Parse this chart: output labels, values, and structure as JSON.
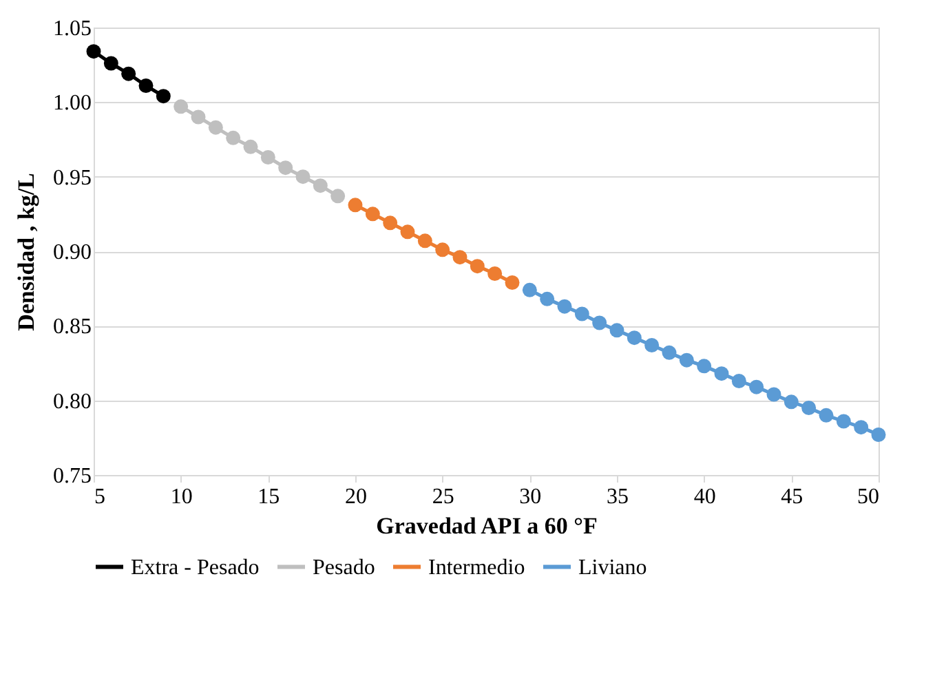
{
  "chart_data": {
    "type": "line",
    "xlabel": "Gravedad API a 60 °F",
    "ylabel": "Densidad , kg/L",
    "xlim": [
      5,
      50
    ],
    "xticks": [
      5,
      10,
      15,
      20,
      25,
      30,
      35,
      40,
      45,
      50
    ],
    "ylim": [
      0.75,
      1.05
    ],
    "yticks": [
      {
        "value": 0.75,
        "label": "0.75"
      },
      {
        "value": 0.8,
        "label": "0.80"
      },
      {
        "value": 0.85,
        "label": "0.85"
      },
      {
        "value": 0.9,
        "label": "0.90"
      },
      {
        "value": 0.95,
        "label": "0.95"
      },
      {
        "value": 1.0,
        "label": "1.00"
      },
      {
        "value": 1.05,
        "label": "1.05"
      }
    ],
    "grid": "y",
    "legend": "bottom",
    "marker": "circle",
    "line_style": "solid",
    "series": [
      {
        "name": "Extra - Pesado",
        "color": "#000000",
        "x": [
          5,
          6,
          7,
          8,
          9
        ],
        "values": [
          1.034,
          1.026,
          1.019,
          1.011,
          1.004
        ]
      },
      {
        "name": "Pesado",
        "color": "#bfbfbf",
        "x": [
          10,
          11,
          12,
          13,
          14,
          15,
          16,
          17,
          18,
          19
        ],
        "values": [
          0.997,
          0.99,
          0.983,
          0.976,
          0.97,
          0.963,
          0.956,
          0.95,
          0.944,
          0.937
        ]
      },
      {
        "name": "Intermedio",
        "color": "#ed7d31",
        "x": [
          20,
          21,
          22,
          23,
          24,
          25,
          26,
          27,
          28,
          29
        ],
        "values": [
          0.931,
          0.925,
          0.919,
          0.913,
          0.907,
          0.901,
          0.896,
          0.89,
          0.885,
          0.879
        ]
      },
      {
        "name": "Liviano",
        "color": "#5b9bd5",
        "x": [
          30,
          31,
          32,
          33,
          34,
          35,
          36,
          37,
          38,
          39,
          40,
          41,
          42,
          43,
          44,
          45,
          46,
          47,
          48,
          49,
          50
        ],
        "values": [
          0.874,
          0.868,
          0.863,
          0.858,
          0.852,
          0.847,
          0.842,
          0.837,
          0.832,
          0.827,
          0.823,
          0.818,
          0.813,
          0.809,
          0.804,
          0.799,
          0.795,
          0.79,
          0.786,
          0.782,
          0.777
        ]
      }
    ]
  }
}
